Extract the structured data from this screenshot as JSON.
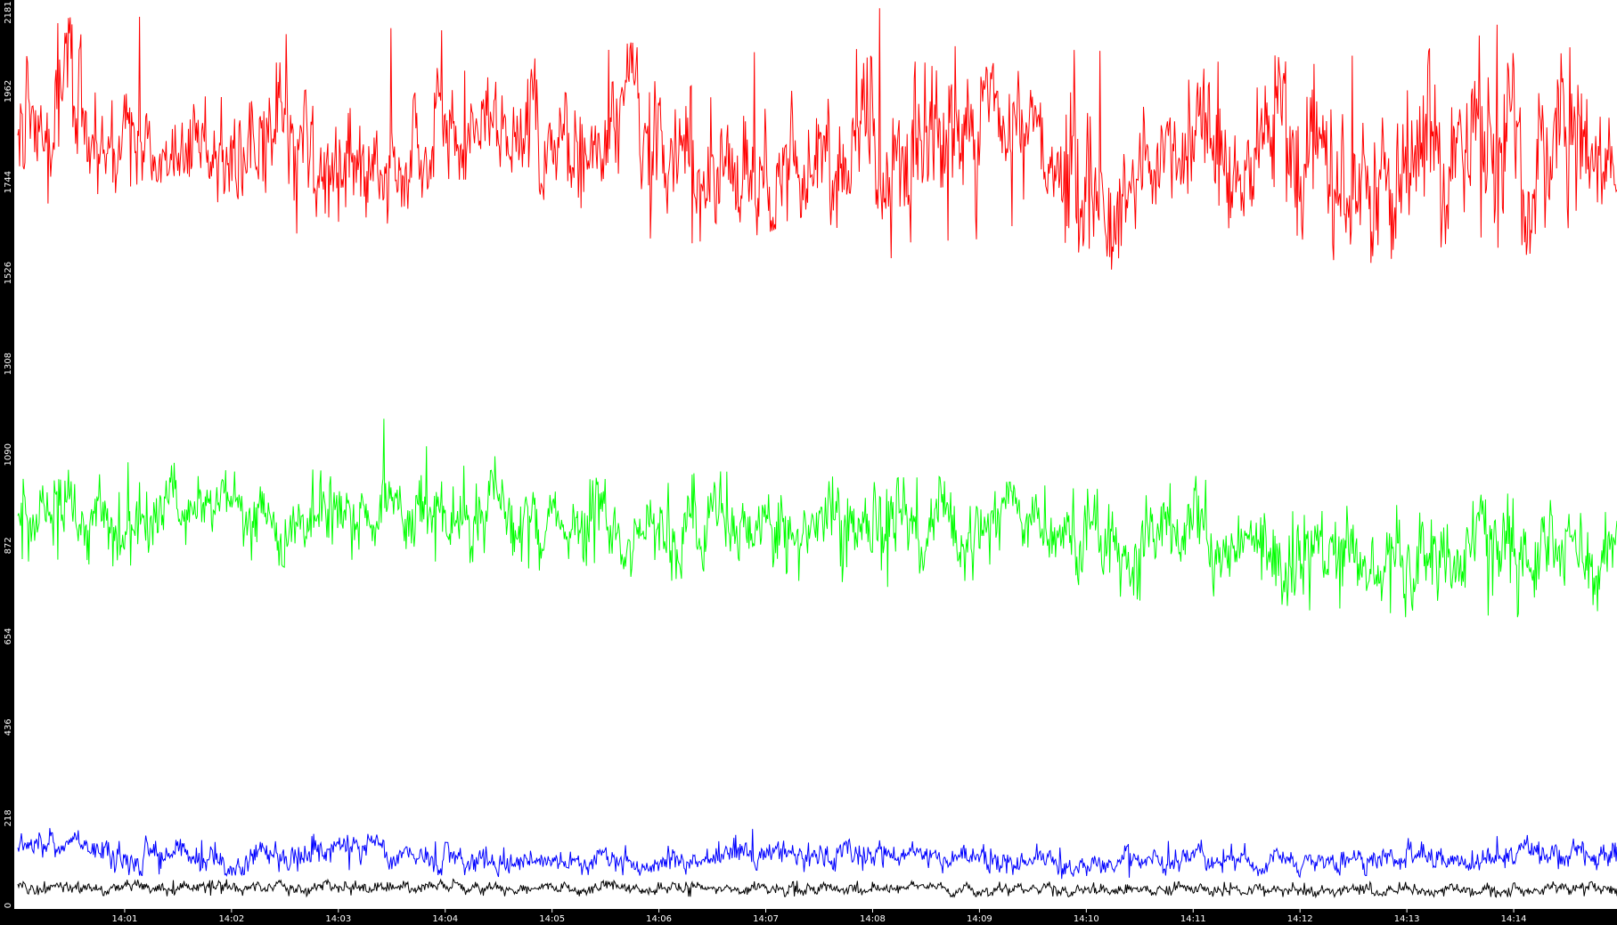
{
  "chart_data": {
    "type": "line",
    "title": "",
    "xlabel": "",
    "ylabel": "",
    "xlim": [
      "13:59:58",
      "14:14:58"
    ],
    "ylim": [
      0,
      2181
    ],
    "y_ticks": [
      "0",
      "218",
      "436",
      "654",
      "872",
      "1090",
      "1308",
      "1526",
      "1744",
      "1962",
      "2181"
    ],
    "x_ticks": [
      "14:01",
      "14:02",
      "14:03",
      "14:04",
      "14:05",
      "14:06",
      "14:07",
      "14:08",
      "14:09",
      "14:10",
      "14:11",
      "14:12",
      "14:13",
      "14:14"
    ],
    "x_tick_times": [
      "14:01:00",
      "14:02:00",
      "14:03:00",
      "14:04:00",
      "14:05:00",
      "14:06:00",
      "14:07:00",
      "14:08:00",
      "14:09:00",
      "14:10:00",
      "14:11:00",
      "14:12:00",
      "14:13:00",
      "14:14:00"
    ],
    "grid": false,
    "legend": "none",
    "axis_background": "#000000",
    "axis_text_color": "#ffffff",
    "series": [
      {
        "color": "#ff0000",
        "x": [
          "14:00:00",
          "14:00:30",
          "14:01:00",
          "14:01:30",
          "14:02:00",
          "14:02:30",
          "14:03:00",
          "14:03:30",
          "14:04:00",
          "14:04:30",
          "14:05:00",
          "14:05:30",
          "14:06:00",
          "14:06:30",
          "14:07:00",
          "14:07:30",
          "14:08:00",
          "14:08:30",
          "14:09:00",
          "14:09:30",
          "14:10:00",
          "14:10:30",
          "14:11:00",
          "14:11:30",
          "14:12:00",
          "14:12:30",
          "14:13:00",
          "14:13:30",
          "14:14:00",
          "14:14:30",
          "14:14:58"
        ],
        "values": [
          1870,
          1890,
          1850,
          1830,
          1810,
          1840,
          1730,
          1790,
          1920,
          1890,
          1840,
          1860,
          1830,
          1820,
          1790,
          1840,
          1760,
          1830,
          1860,
          1870,
          1750,
          1790,
          1830,
          1820,
          1760,
          1810,
          1820,
          1840,
          1860,
          1840,
          1790
        ],
        "variation_max": [
          2100,
          2140,
          2150,
          2160,
          2020,
          2100,
          2050,
          2140,
          2120,
          2060,
          2080,
          2060,
          2100,
          2120,
          2060,
          2100,
          2181,
          2120,
          2040,
          2000,
          2080,
          2040,
          2000,
          2080,
          2020,
          2060,
          2120,
          2100,
          2140,
          2120,
          2060
        ],
        "variation_min": [
          1700,
          1660,
          1730,
          1700,
          1640,
          1630,
          1540,
          1650,
          1750,
          1750,
          1650,
          1690,
          1590,
          1600,
          1620,
          1680,
          1500,
          1600,
          1590,
          1640,
          1430,
          1640,
          1620,
          1640,
          1520,
          1560,
          1530,
          1620,
          1560,
          1600,
          1630
        ]
      },
      {
        "color": "#00ff00",
        "x": [
          "14:00:00",
          "14:00:30",
          "14:01:00",
          "14:01:30",
          "14:02:00",
          "14:02:30",
          "14:03:00",
          "14:03:30",
          "14:04:00",
          "14:04:30",
          "14:05:00",
          "14:05:30",
          "14:06:00",
          "14:06:30",
          "14:07:00",
          "14:07:30",
          "14:08:00",
          "14:08:30",
          "14:09:00",
          "14:09:30",
          "14:10:00",
          "14:10:30",
          "14:11:00",
          "14:11:30",
          "14:12:00",
          "14:12:30",
          "14:13:00",
          "14:13:30",
          "14:14:00",
          "14:14:30",
          "14:14:58"
        ],
        "values": [
          950,
          955,
          950,
          975,
          960,
          945,
          950,
          935,
          940,
          945,
          920,
          915,
          910,
          905,
          905,
          900,
          905,
          895,
          910,
          920,
          880,
          870,
          875,
          880,
          870,
          850,
          850,
          840,
          835,
          840,
          840
        ],
        "variation_max": [
          1080,
          1070,
          1080,
          1090,
          1050,
          1040,
          1070,
          1210,
          1060,
          1100,
          1010,
          1040,
          1040,
          1050,
          1050,
          1040,
          1030,
          1040,
          1030,
          1020,
          1010,
          1000,
          1040,
          1020,
          1010,
          1000,
          1000,
          990,
          1000,
          990,
          990
        ],
        "variation_min": [
          830,
          830,
          820,
          800,
          830,
          820,
          830,
          820,
          830,
          830,
          800,
          800,
          790,
          780,
          790,
          780,
          770,
          780,
          790,
          790,
          740,
          740,
          750,
          750,
          720,
          700,
          700,
          690,
          700,
          700,
          700
        ]
      },
      {
        "color": "#0000ff",
        "x": [
          "14:00:00",
          "14:00:30",
          "14:01:00",
          "14:01:30",
          "14:02:00",
          "14:02:30",
          "14:03:00",
          "14:03:30",
          "14:04:00",
          "14:04:30",
          "14:05:00",
          "14:05:30",
          "14:06:00",
          "14:06:30",
          "14:07:00",
          "14:07:30",
          "14:08:00",
          "14:08:30",
          "14:09:00",
          "14:09:30",
          "14:10:00",
          "14:10:30",
          "14:11:00",
          "14:11:30",
          "14:12:00",
          "14:12:30",
          "14:13:00",
          "14:13:30",
          "14:14:00",
          "14:14:30",
          "14:14:58"
        ],
        "values": [
          160,
          150,
          125,
          130,
          115,
          130,
          140,
          130,
          120,
          110,
          115,
          120,
          110,
          115,
          125,
          140,
          135,
          120,
          130,
          110,
          100,
          110,
          130,
          115,
          110,
          120,
          125,
          110,
          125,
          130,
          125
        ],
        "variation_max": [
          200,
          190,
          180,
          170,
          160,
          180,
          180,
          180,
          160,
          150,
          160,
          160,
          150,
          160,
          210,
          180,
          190,
          170,
          170,
          160,
          140,
          160,
          170,
          160,
          150,
          170,
          170,
          170,
          180,
          170,
          160
        ],
        "variation_min": [
          110,
          100,
          80,
          80,
          80,
          90,
          90,
          90,
          80,
          75,
          80,
          80,
          80,
          75,
          85,
          90,
          90,
          85,
          85,
          80,
          65,
          75,
          85,
          80,
          75,
          80,
          80,
          75,
          85,
          85,
          85
        ]
      },
      {
        "color": "#000000",
        "x": [
          "14:00:00",
          "14:00:30",
          "14:01:00",
          "14:01:30",
          "14:02:00",
          "14:02:30",
          "14:03:00",
          "14:03:30",
          "14:04:00",
          "14:04:30",
          "14:05:00",
          "14:05:30",
          "14:06:00",
          "14:06:30",
          "14:07:00",
          "14:07:30",
          "14:08:00",
          "14:08:30",
          "14:09:00",
          "14:09:30",
          "14:10:00",
          "14:10:30",
          "14:11:00",
          "14:11:30",
          "14:12:00",
          "14:12:30",
          "14:13:00",
          "14:13:30",
          "14:14:00",
          "14:14:30",
          "14:14:58"
        ],
        "values": [
          55,
          52,
          50,
          50,
          52,
          50,
          50,
          48,
          52,
          50,
          48,
          50,
          48,
          47,
          49,
          50,
          50,
          47,
          48,
          48,
          47,
          46,
          48,
          47,
          46,
          48,
          47,
          46,
          47,
          48,
          47
        ],
        "variation_max": [
          75,
          70,
          70,
          70,
          72,
          68,
          70,
          66,
          72,
          68,
          66,
          70,
          66,
          64,
          68,
          70,
          70,
          65,
          66,
          66,
          64,
          64,
          66,
          65,
          64,
          66,
          65,
          64,
          65,
          66,
          65
        ],
        "variation_min": [
          35,
          32,
          30,
          30,
          32,
          30,
          30,
          30,
          32,
          30,
          30,
          30,
          30,
          29,
          30,
          30,
          30,
          29,
          30,
          30,
          29,
          28,
          30,
          29,
          28,
          30,
          29,
          28,
          29,
          30,
          29
        ]
      }
    ]
  }
}
